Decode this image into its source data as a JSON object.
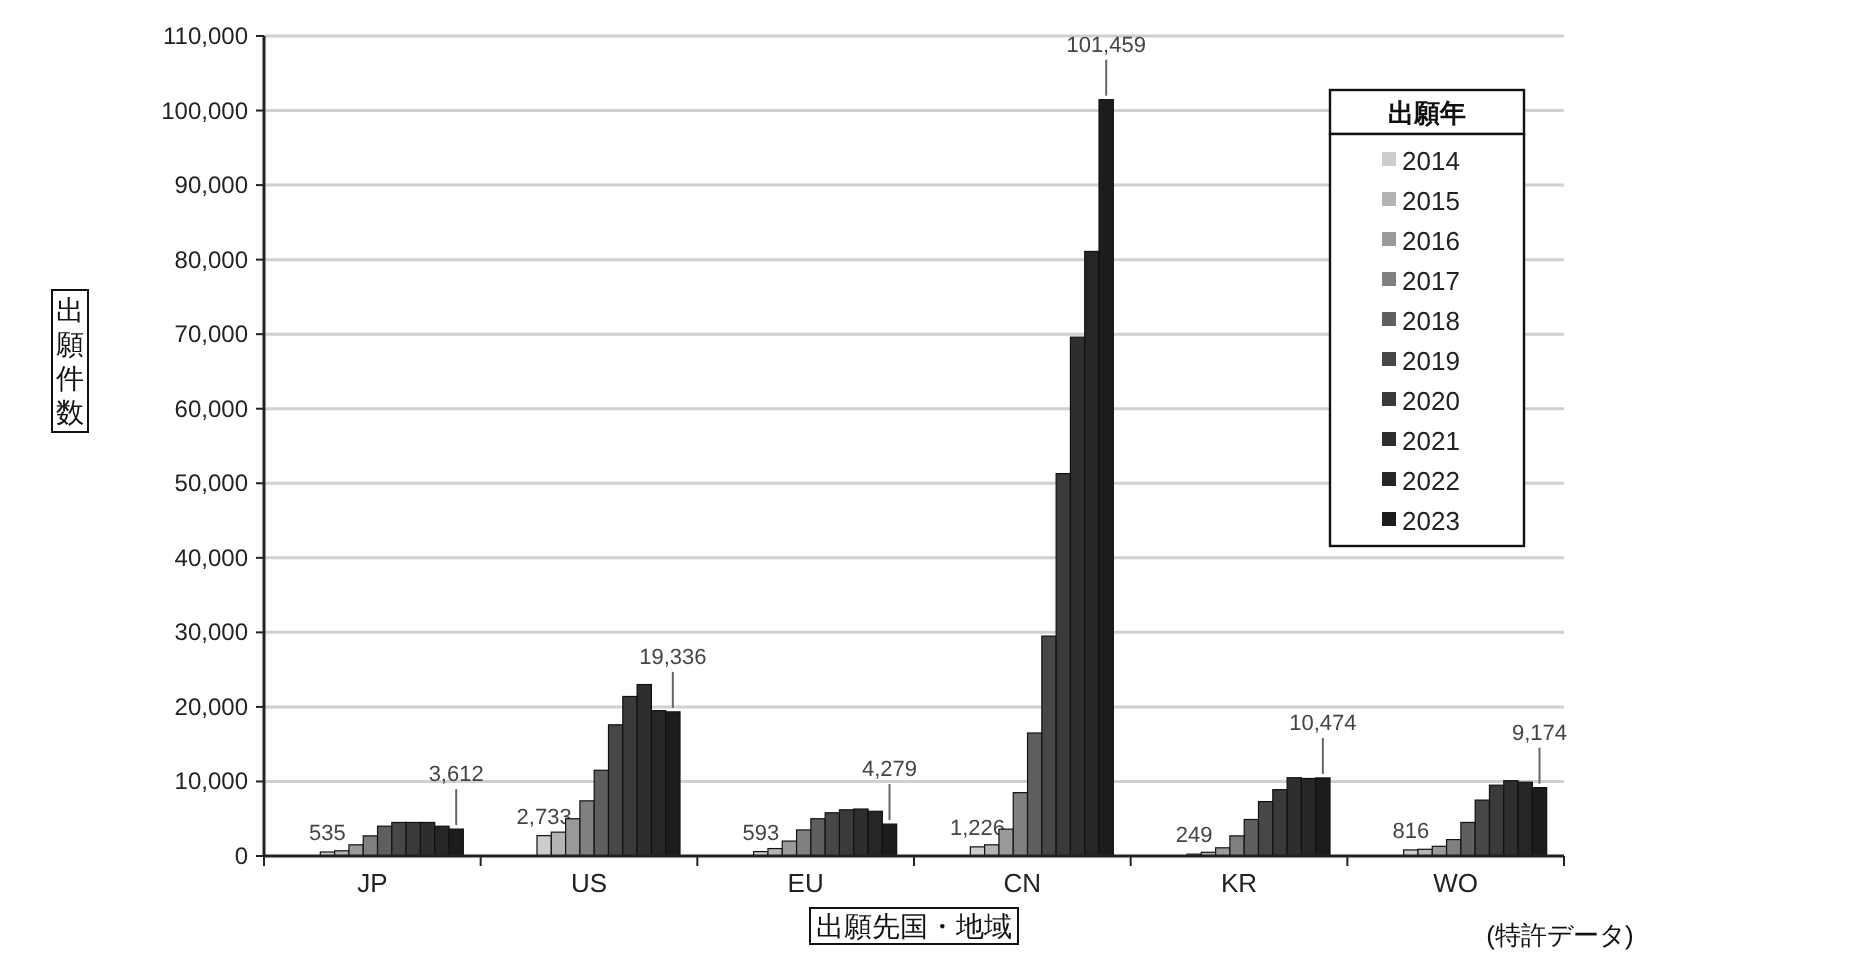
{
  "chart_data": {
    "type": "bar",
    "categories": [
      "JP",
      "US",
      "EU",
      "CN",
      "KR",
      "WO"
    ],
    "xlabel": "出願先国・地域",
    "ylabel": "出願件数",
    "legend_title": "出願年",
    "legend": "top right",
    "grid": "y",
    "ylim": [
      0,
      110000
    ],
    "yticks": [
      0,
      {
        "value": 10000,
        "label": "10,000"
      },
      {
        "value": 20000,
        "label": "20,000"
      },
      {
        "value": 30000,
        "label": "30,000"
      },
      {
        "value": 40000,
        "label": "40,000"
      },
      {
        "value": 50000,
        "label": "50,000"
      },
      {
        "value": 60000,
        "label": "60,000"
      },
      {
        "value": 70000,
        "label": "70,000"
      },
      {
        "value": 80000,
        "label": "80,000"
      },
      {
        "value": 90000,
        "label": "90,000"
      },
      {
        "value": 100000,
        "label": "100,000"
      },
      {
        "value": 110000,
        "label": "110,000"
      }
    ],
    "annotations": [
      "(特許データ)"
    ],
    "series": [
      {
        "name": "2014",
        "color": "#cdcdcd",
        "values": [
          535,
          2733,
          593,
          1226,
          249,
          816
        ],
        "value_labels": [
          "535",
          "2,733",
          "593",
          "1,226",
          "249",
          "816"
        ]
      },
      {
        "name": "2015",
        "color": "#b4b4b4",
        "values": [
          700,
          3200,
          1000,
          1500,
          500,
          900
        ]
      },
      {
        "name": "2016",
        "color": "#9a9a9a",
        "values": [
          1500,
          5000,
          2000,
          3600,
          1100,
          1300
        ]
      },
      {
        "name": "2017",
        "color": "#808080",
        "values": [
          2700,
          7400,
          3500,
          8500,
          2700,
          2200
        ]
      },
      {
        "name": "2018",
        "color": "#5f5f5f",
        "values": [
          4000,
          11500,
          5000,
          16500,
          4900,
          4500
        ]
      },
      {
        "name": "2019",
        "color": "#474747",
        "values": [
          4500,
          17600,
          5800,
          29500,
          7300,
          7500
        ]
      },
      {
        "name": "2020",
        "color": "#3a3a3a",
        "values": [
          4500,
          21400,
          6200,
          51300,
          8900,
          9500
        ]
      },
      {
        "name": "2021",
        "color": "#2e2e2e",
        "values": [
          4500,
          23000,
          6300,
          69600,
          10500,
          10100
        ]
      },
      {
        "name": "2022",
        "color": "#262626",
        "values": [
          4000,
          19500,
          6000,
          81100,
          10400,
          9900
        ]
      },
      {
        "name": "2023",
        "color": "#1c1c1c",
        "values": [
          3612,
          19336,
          4279,
          101459,
          10474,
          9174
        ],
        "value_labels": [
          "3,612",
          "19,336",
          "4,279",
          "101,459",
          "10,474",
          "9,174"
        ]
      }
    ]
  }
}
